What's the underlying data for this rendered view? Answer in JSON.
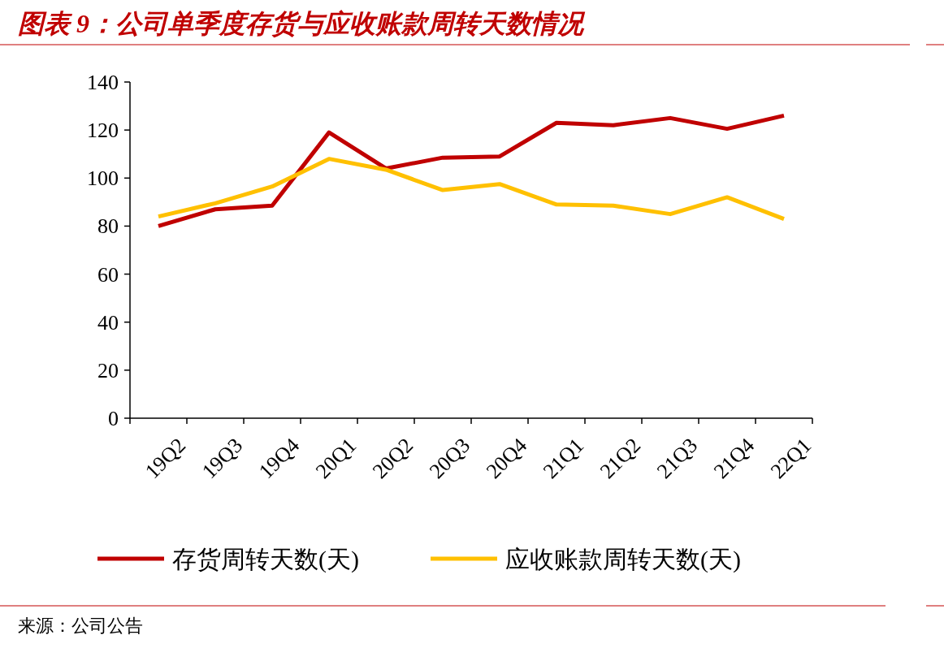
{
  "chart_data": {
    "type": "line",
    "title": "图表 9：公司单季度存货与应收账款周转天数情况",
    "categories": [
      "19Q2",
      "19Q3",
      "19Q4",
      "20Q1",
      "20Q2",
      "20Q3",
      "20Q4",
      "21Q1",
      "21Q2",
      "21Q3",
      "21Q4",
      "22Q1"
    ],
    "series": [
      {
        "name": "存货周转天数(天)",
        "color": "#c00000",
        "values": [
          80,
          87,
          88.5,
          119,
          104,
          108.5,
          109,
          123,
          122,
          125,
          120.5,
          126
        ]
      },
      {
        "name": "应收账款周转天数(天)",
        "color": "#ffc000",
        "values": [
          84,
          89.5,
          96.5,
          108,
          103.5,
          95,
          97.5,
          89,
          88.5,
          85,
          92,
          83
        ]
      }
    ],
    "ylim": [
      0,
      140
    ],
    "yticks": [
      0,
      20,
      40,
      60,
      80,
      100,
      120,
      140
    ],
    "legend": "bottom",
    "annotations": [
      "来源：公司公告"
    ]
  }
}
